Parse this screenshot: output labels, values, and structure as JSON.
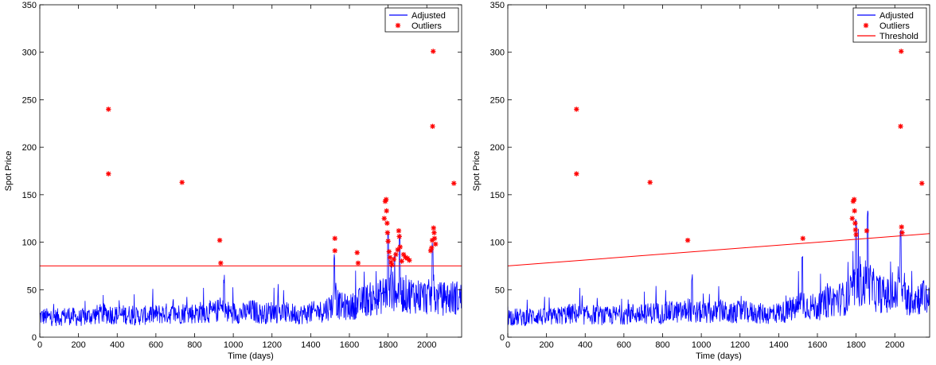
{
  "chart_data": [
    {
      "type": "line",
      "title": "",
      "xlabel": "Time (days)",
      "ylabel": "Spot Price",
      "xlim": [
        0,
        2180
      ],
      "ylim": [
        0,
        350
      ],
      "xticks": [
        0,
        200,
        400,
        600,
        800,
        1000,
        1200,
        1400,
        1600,
        1800,
        2000
      ],
      "yticks": [
        0,
        50,
        100,
        150,
        200,
        250,
        300,
        350
      ],
      "grid": false,
      "legend_position": "top-right",
      "legend": [
        "Adjusted",
        "Outliers"
      ],
      "series": [
        {
          "name": "Adjusted",
          "style": "line",
          "color": "#0000ff",
          "x": [
            0,
            50,
            100,
            150,
            200,
            250,
            300,
            350,
            400,
            450,
            500,
            550,
            600,
            650,
            700,
            750,
            800,
            850,
            900,
            940,
            950,
            1000,
            1050,
            1100,
            1150,
            1200,
            1250,
            1300,
            1350,
            1400,
            1450,
            1500,
            1525,
            1550,
            1600,
            1650,
            1700,
            1750,
            1780,
            1800,
            1830,
            1860,
            1880,
            1900,
            1950,
            2000,
            2030,
            2060,
            2100,
            2150,
            2180
          ],
          "y": [
            22,
            21,
            21,
            23,
            20,
            22,
            24,
            25,
            23,
            24,
            22,
            23,
            24,
            25,
            24,
            26,
            25,
            27,
            26,
            30,
            27,
            26,
            25,
            28,
            24,
            27,
            26,
            25,
            24,
            26,
            27,
            32,
            38,
            33,
            31,
            36,
            40,
            41,
            46,
            50,
            48,
            47,
            46,
            45,
            44,
            42,
            43,
            40,
            41,
            42,
            40
          ]
        },
        {
          "name": "Outliers",
          "style": "marker",
          "marker": "*",
          "color": "#ff0000",
          "points": [
            [
              355,
              240
            ],
            [
              355,
              172
            ],
            [
              735,
              163
            ],
            [
              930,
              102
            ],
            [
              935,
              78
            ],
            [
              1525,
              104
            ],
            [
              1525,
              91
            ],
            [
              1640,
              89
            ],
            [
              1645,
              78
            ],
            [
              1780,
              125
            ],
            [
              1785,
              143
            ],
            [
              1790,
              145
            ],
            [
              1792,
              133
            ],
            [
              1795,
              120
            ],
            [
              1797,
              110
            ],
            [
              1800,
              101
            ],
            [
              1805,
              90
            ],
            [
              1810,
              84
            ],
            [
              1815,
              79
            ],
            [
              1820,
              76
            ],
            [
              1830,
              82
            ],
            [
              1840,
              87
            ],
            [
              1850,
              92
            ],
            [
              1855,
              112
            ],
            [
              1858,
              106
            ],
            [
              1862,
              95
            ],
            [
              1870,
              80
            ],
            [
              1880,
              87
            ],
            [
              1890,
              84
            ],
            [
              1900,
              83
            ],
            [
              1910,
              81
            ],
            [
              2020,
              91
            ],
            [
              2025,
              94
            ],
            [
              2028,
              102
            ],
            [
              2030,
              222
            ],
            [
              2033,
              301
            ],
            [
              2035,
              115
            ],
            [
              2038,
              110
            ],
            [
              2040,
              104
            ],
            [
              2045,
              98
            ],
            [
              2140,
              162
            ]
          ]
        },
        {
          "name": "Threshold",
          "style": "line",
          "color": "#ff0000",
          "x": [
            0,
            2180
          ],
          "y": [
            75,
            75
          ]
        }
      ]
    },
    {
      "type": "line",
      "title": "",
      "xlabel": "Time (days)",
      "ylabel": "Spot Price",
      "xlim": [
        0,
        2180
      ],
      "ylim": [
        0,
        350
      ],
      "xticks": [
        0,
        200,
        400,
        600,
        800,
        1000,
        1200,
        1400,
        1600,
        1800,
        2000
      ],
      "yticks": [
        0,
        50,
        100,
        150,
        200,
        250,
        300,
        350
      ],
      "grid": false,
      "legend_position": "top-right",
      "legend": [
        "Adjusted",
        "Outliers",
        "Threshold"
      ],
      "series": [
        {
          "name": "Adjusted",
          "style": "line",
          "color": "#0000ff",
          "x": [
            0,
            50,
            100,
            150,
            200,
            250,
            300,
            350,
            400,
            450,
            500,
            550,
            600,
            650,
            700,
            750,
            800,
            850,
            900,
            940,
            950,
            1000,
            1050,
            1100,
            1150,
            1200,
            1250,
            1300,
            1350,
            1400,
            1450,
            1500,
            1525,
            1550,
            1600,
            1650,
            1700,
            1750,
            1780,
            1800,
            1830,
            1860,
            1880,
            1900,
            1950,
            2000,
            2030,
            2060,
            2100,
            2150,
            2180
          ],
          "y": [
            22,
            21,
            21,
            23,
            20,
            22,
            24,
            25,
            23,
            24,
            22,
            23,
            24,
            25,
            24,
            26,
            25,
            27,
            26,
            30,
            27,
            26,
            25,
            28,
            24,
            27,
            26,
            25,
            24,
            26,
            27,
            32,
            38,
            33,
            31,
            36,
            40,
            41,
            48,
            56,
            54,
            60,
            52,
            48,
            44,
            42,
            50,
            40,
            41,
            42,
            40
          ]
        },
        {
          "name": "Outliers",
          "style": "marker",
          "marker": "*",
          "color": "#ff0000",
          "points": [
            [
              355,
              240
            ],
            [
              355,
              172
            ],
            [
              735,
              163
            ],
            [
              930,
              102
            ],
            [
              1525,
              104
            ],
            [
              1780,
              125
            ],
            [
              1785,
              143
            ],
            [
              1790,
              145
            ],
            [
              1792,
              133
            ],
            [
              1795,
              120
            ],
            [
              1797,
              113
            ],
            [
              1800,
              108
            ],
            [
              1855,
              112
            ],
            [
              2030,
              222
            ],
            [
              2033,
              301
            ],
            [
              2035,
              116
            ],
            [
              2038,
              110
            ],
            [
              2140,
              162
            ]
          ]
        },
        {
          "name": "Threshold",
          "style": "line",
          "color": "#ff0000",
          "x": [
            0,
            2180
          ],
          "y": [
            75,
            109
          ]
        }
      ]
    }
  ]
}
